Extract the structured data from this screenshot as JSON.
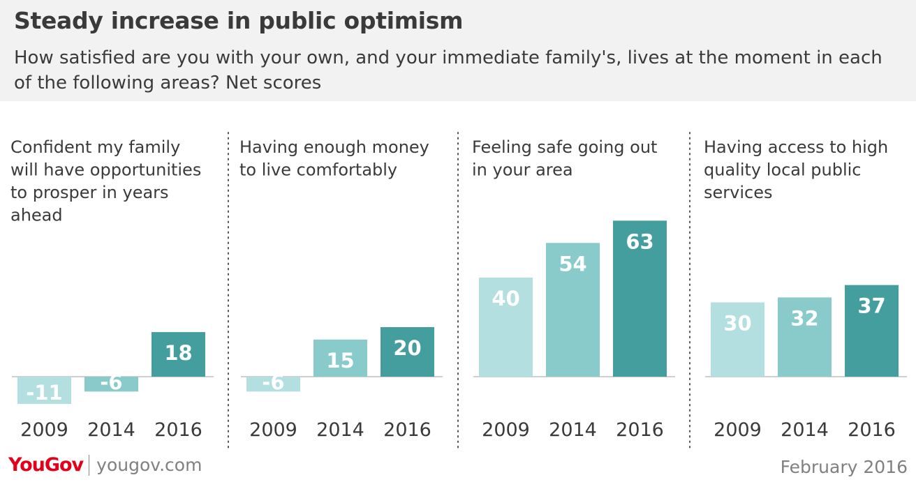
{
  "title": "Steady increase in public optimism",
  "subtitle": "How satisfied are you with your own, and your immediate family's, lives at the moment in each of the following areas? Net scores",
  "footer": {
    "logo": "YouGov",
    "site": "yougov.com",
    "date": "February 2016"
  },
  "colors": {
    "light": "#b3dfe0",
    "mid": "#89cbcb",
    "dark": "#449e9e",
    "text": "#3a3a3a"
  },
  "chart_data": [
    {
      "type": "bar",
      "title": "Confident my family will have opportunities to prosper in years ahead",
      "title_lines": [
        "Confident my family",
        "will have opportunities",
        "to prosper in years",
        "ahead"
      ],
      "categories": [
        "2009",
        "2014",
        "2016"
      ],
      "values": [
        -11,
        -6,
        18
      ]
    },
    {
      "type": "bar",
      "title": "Having enough money to live comfortably",
      "title_lines": [
        "Having enough money",
        "to live comfortably"
      ],
      "categories": [
        "2009",
        "2014",
        "2016"
      ],
      "values": [
        -6,
        15,
        20
      ]
    },
    {
      "type": "bar",
      "title": "Feeling safe going out in your area",
      "title_lines": [
        "Feeling safe going out",
        "in your area"
      ],
      "categories": [
        "2009",
        "2014",
        "2016"
      ],
      "values": [
        40,
        54,
        63
      ]
    },
    {
      "type": "bar",
      "title": "Having access to high quality local public services",
      "title_lines": [
        "Having access to high",
        "quality local public",
        "services"
      ],
      "categories": [
        "2009",
        "2014",
        "2016"
      ],
      "values": [
        30,
        32,
        37
      ]
    }
  ]
}
